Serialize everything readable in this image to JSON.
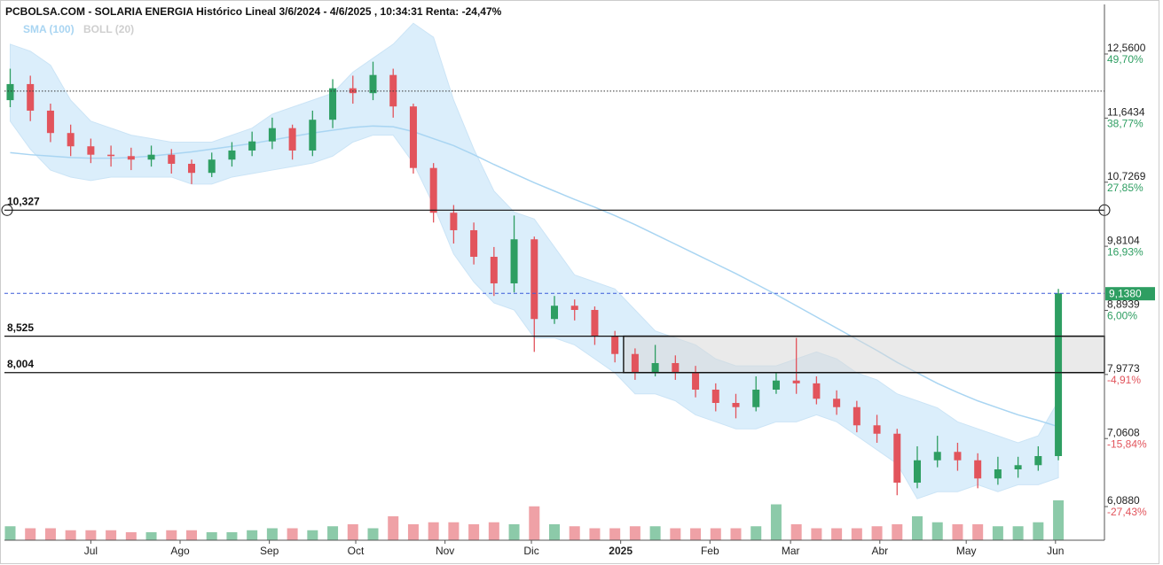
{
  "chart_data": {
    "type": "candlestick",
    "title": "PCBOLSA.COM - SOLARIA ENERGIA Histórico Lineal 3/6/2024 - 4/6/2025 , 10:34:31 Renta: -24,47%",
    "x": [
      "2024-06-03",
      "2024-06-10",
      "2024-06-17",
      "2024-06-24",
      "2024-07-01",
      "2024-07-08",
      "2024-07-15",
      "2024-07-22",
      "2024-07-29",
      "2024-08-05",
      "2024-08-12",
      "2024-08-19",
      "2024-08-26",
      "2024-09-02",
      "2024-09-09",
      "2024-09-16",
      "2024-09-23",
      "2024-09-30",
      "2024-10-07",
      "2024-10-14",
      "2024-10-21",
      "2024-10-28",
      "2024-11-04",
      "2024-11-11",
      "2024-11-18",
      "2024-11-25",
      "2024-12-02",
      "2024-12-09",
      "2024-12-16",
      "2024-12-23",
      "2024-12-30",
      "2025-01-06",
      "2025-01-13",
      "2025-01-20",
      "2025-01-27",
      "2025-02-03",
      "2025-02-10",
      "2025-02-17",
      "2025-02-24",
      "2025-03-03",
      "2025-03-10",
      "2025-03-17",
      "2025-03-24",
      "2025-03-31",
      "2025-04-07",
      "2025-04-14",
      "2025-04-21",
      "2025-04-28",
      "2025-05-05",
      "2025-05-12",
      "2025-05-19",
      "2025-05-26",
      "2025-06-02"
    ],
    "open": [
      11.9,
      12.13,
      11.75,
      11.43,
      11.24,
      11.12,
      11.1,
      11.05,
      11.12,
      10.99,
      10.86,
      11.05,
      11.18,
      11.31,
      11.5,
      11.18,
      11.62,
      12.07,
      12.0,
      12.26,
      11.81,
      10.93,
      10.29,
      10.04,
      9.66,
      9.28,
      9.91,
      8.77,
      8.96,
      8.9,
      8.52,
      8.27,
      8.01,
      8.14,
      8.01,
      7.76,
      7.57,
      7.51,
      7.76,
      7.89,
      7.85,
      7.63,
      7.51,
      7.25,
      7.13,
      6.43,
      6.75,
      6.87,
      6.75,
      6.49,
      6.62,
      6.68,
      6.81
    ],
    "high": [
      12.35,
      12.25,
      11.85,
      11.55,
      11.35,
      11.25,
      11.22,
      11.25,
      11.2,
      11.05,
      11.15,
      11.3,
      11.45,
      11.65,
      11.55,
      11.75,
      12.2,
      12.25,
      12.45,
      12.35,
      11.85,
      11.0,
      10.4,
      10.15,
      9.8,
      10.25,
      9.95,
      9.1,
      9.05,
      8.95,
      8.6,
      8.35,
      8.4,
      8.25,
      8.1,
      7.85,
      7.7,
      7.95,
      8.0,
      8.5,
      7.95,
      7.75,
      7.6,
      7.4,
      7.2,
      6.95,
      7.1,
      7.0,
      6.85,
      6.8,
      6.8,
      6.95,
      9.2
    ],
    "low": [
      11.8,
      11.6,
      11.3,
      11.1,
      11.0,
      10.95,
      10.9,
      10.95,
      10.85,
      10.7,
      10.8,
      10.95,
      11.1,
      11.2,
      11.05,
      11.1,
      11.5,
      11.85,
      11.9,
      11.65,
      10.85,
      10.15,
      9.85,
      9.55,
      9.1,
      9.15,
      8.3,
      8.7,
      8.75,
      8.4,
      8.15,
      7.9,
      7.95,
      7.9,
      7.65,
      7.45,
      7.35,
      7.45,
      7.7,
      7.7,
      7.55,
      7.4,
      7.15,
      7.0,
      6.25,
      6.35,
      6.65,
      6.6,
      6.35,
      6.4,
      6.5,
      6.6,
      6.75
    ],
    "close": [
      12.13,
      11.75,
      11.43,
      11.24,
      11.12,
      11.1,
      11.05,
      11.12,
      10.99,
      10.86,
      11.05,
      11.18,
      11.31,
      11.5,
      11.18,
      11.62,
      12.07,
      12.0,
      12.26,
      11.81,
      10.93,
      10.29,
      10.04,
      9.66,
      9.28,
      9.91,
      8.77,
      8.96,
      8.9,
      8.52,
      8.27,
      8.01,
      8.14,
      8.01,
      7.76,
      7.57,
      7.51,
      7.76,
      7.89,
      7.85,
      7.63,
      7.51,
      7.25,
      7.13,
      6.43,
      6.75,
      6.87,
      6.75,
      6.49,
      6.62,
      6.68,
      6.81,
      9.138
    ],
    "volume": [
      35,
      30,
      30,
      25,
      25,
      25,
      20,
      20,
      25,
      25,
      20,
      20,
      25,
      30,
      30,
      25,
      35,
      40,
      30,
      60,
      40,
      45,
      45,
      40,
      45,
      40,
      85,
      40,
      35,
      30,
      30,
      35,
      35,
      30,
      30,
      30,
      30,
      35,
      90,
      40,
      30,
      30,
      30,
      35,
      40,
      60,
      45,
      40,
      40,
      35,
      35,
      45,
      100
    ],
    "volume_lim": [
      0,
      100
    ],
    "up_color": "#2e9e62",
    "down_color": "#e2545c",
    "sma": {
      "name": "SMA (100)",
      "color": "#a9d5f2",
      "values": [
        11.15,
        11.12,
        11.1,
        11.08,
        11.07,
        11.07,
        11.08,
        11.1,
        11.13,
        11.16,
        11.2,
        11.24,
        11.28,
        11.33,
        11.38,
        11.43,
        11.47,
        11.51,
        11.53,
        11.52,
        11.45,
        11.35,
        11.25,
        11.12,
        10.98,
        10.85,
        10.72,
        10.6,
        10.48,
        10.37,
        10.25,
        10.12,
        9.98,
        9.84,
        9.7,
        9.56,
        9.42,
        9.27,
        9.12,
        8.96,
        8.8,
        8.64,
        8.48,
        8.32,
        8.15,
        8.0,
        7.85,
        7.72,
        7.6,
        7.5,
        7.4,
        7.32,
        7.23
      ]
    },
    "boll": {
      "name": "BOLL (20)",
      "color": "#dbeefb",
      "upper": [
        12.7,
        12.6,
        12.4,
        11.9,
        11.6,
        11.5,
        11.4,
        11.35,
        11.3,
        11.3,
        11.3,
        11.4,
        11.5,
        11.7,
        11.8,
        11.9,
        12.0,
        12.3,
        12.5,
        12.7,
        13.0,
        12.8,
        11.9,
        11.2,
        10.6,
        10.3,
        10.2,
        9.8,
        9.4,
        9.3,
        9.2,
        8.9,
        8.6,
        8.5,
        8.4,
        8.2,
        8.1,
        8.1,
        8.1,
        8.2,
        8.3,
        8.2,
        8.0,
        7.9,
        7.7,
        7.6,
        7.5,
        7.3,
        7.2,
        7.1,
        7.0,
        7.1,
        7.6
      ],
      "lower": [
        11.6,
        11.2,
        10.9,
        10.8,
        10.75,
        10.8,
        10.8,
        10.8,
        10.8,
        10.7,
        10.7,
        10.8,
        10.85,
        10.9,
        10.95,
        11.0,
        11.1,
        11.3,
        11.4,
        11.4,
        11.0,
        10.4,
        9.7,
        9.3,
        9.0,
        8.9,
        8.5,
        8.5,
        8.4,
        8.2,
        8.0,
        7.7,
        7.7,
        7.6,
        7.4,
        7.3,
        7.2,
        7.2,
        7.3,
        7.3,
        7.4,
        7.3,
        7.1,
        6.9,
        6.7,
        6.2,
        6.3,
        6.3,
        6.4,
        6.3,
        6.4,
        6.4,
        6.5
      ]
    },
    "xlim": [
      "2024-06-01",
      "2025-06-18"
    ],
    "xticks": [
      {
        "value": "2024-07-01",
        "label": "Jul"
      },
      {
        "value": "2024-08-01",
        "label": "Ago"
      },
      {
        "value": "2024-09-01",
        "label": "Sep"
      },
      {
        "value": "2024-10-01",
        "label": "Oct"
      },
      {
        "value": "2024-11-01",
        "label": "Nov"
      },
      {
        "value": "2024-12-01",
        "label": "Dic"
      },
      {
        "value": "2025-01-01",
        "label": "2025"
      },
      {
        "value": "2025-02-01",
        "label": "Feb"
      },
      {
        "value": "2025-03-01",
        "label": "Mar"
      },
      {
        "value": "2025-04-01",
        "label": "Abr"
      },
      {
        "value": "2025-05-01",
        "label": "May"
      },
      {
        "value": "2025-06-01",
        "label": "Jun"
      }
    ],
    "ylim": [
      5.607,
      13.269
    ],
    "yticks": [
      {
        "value": 12.56,
        "label": "12,5600"
      },
      {
        "value": 11.6434,
        "label": "11,6434"
      },
      {
        "value": 10.7269,
        "label": "10,7269"
      },
      {
        "value": 9.8104,
        "label": "9,8104"
      },
      {
        "value": 8.8939,
        "label": "8,8939"
      },
      {
        "value": 7.9773,
        "label": "7,9773"
      },
      {
        "value": 7.0608,
        "label": "7,0608"
      },
      {
        "value": 6.088,
        "label": "6,0880"
      }
    ],
    "ytick_changes": [
      {
        "value": 49.7,
        "label": "49,70%"
      },
      {
        "value": 38.77,
        "label": "38,77%"
      },
      {
        "value": 27.85,
        "label": "27,85%"
      },
      {
        "value": 16.93,
        "label": "16,93%"
      },
      {
        "value": 6.0,
        "label": "6,00%"
      },
      {
        "value": -4.91,
        "label": "-4,91%"
      },
      {
        "value": -15.84,
        "label": "-15,84%"
      },
      {
        "value": -27.43,
        "label": "-27,43%"
      }
    ],
    "hlines": [
      {
        "value": 10.327,
        "label": "10,327"
      },
      {
        "value": 8.525,
        "label": "8,525"
      },
      {
        "value": 8.004,
        "label": "8,004"
      }
    ],
    "zone_start": "2025-01-02",
    "dotted_line": 12.03,
    "last_price": {
      "value": 9.138,
      "label": "9,1380"
    }
  }
}
